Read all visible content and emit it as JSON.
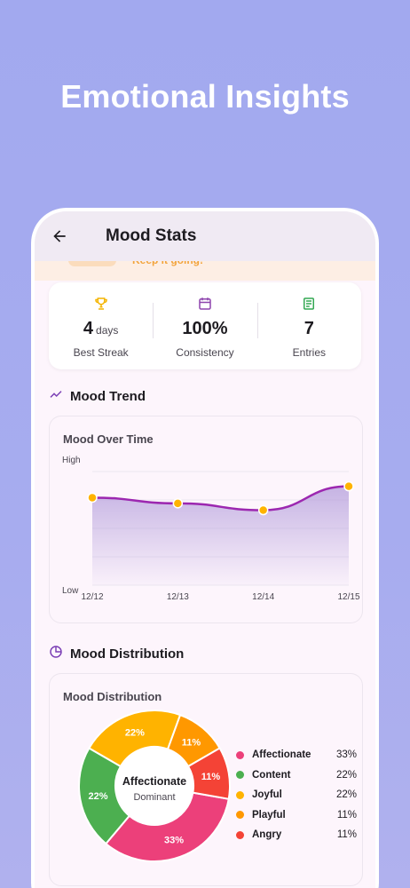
{
  "hero_title": "Emotional Insights",
  "appbar": {
    "title": "Mood Stats"
  },
  "banner": {
    "text": "Keep it going!"
  },
  "stats": [
    {
      "icon": "trophy-icon",
      "value": "4",
      "unit": "days",
      "label": "Best Streak",
      "color": "#f4b400"
    },
    {
      "icon": "calendar-icon",
      "value": "100%",
      "unit": "",
      "label": "Consistency",
      "color": "#8e44ad"
    },
    {
      "icon": "list-icon",
      "value": "7",
      "unit": "",
      "label": "Entries",
      "color": "#34a853"
    }
  ],
  "trend": {
    "section_title": "Mood Trend",
    "card_title": "Mood Over Time"
  },
  "distribution": {
    "section_title": "Mood Distribution",
    "card_title": "Mood Distribution",
    "center_label": "Affectionate",
    "center_sub": "Dominant",
    "legend": [
      {
        "name": "Affectionate",
        "pct": "33%",
        "color": "#ec407a"
      },
      {
        "name": "Content",
        "pct": "22%",
        "color": "#4caf50"
      },
      {
        "name": "Joyful",
        "pct": "22%",
        "color": "#ffb300"
      },
      {
        "name": "Playful",
        "pct": "11%",
        "color": "#ff9800"
      },
      {
        "name": "Angry",
        "pct": "11%",
        "color": "#f44336"
      }
    ]
  },
  "chart_data": [
    {
      "type": "area",
      "title": "Mood Over Time",
      "categories": [
        "12/12",
        "12/13",
        "12/14",
        "12/15"
      ],
      "values": [
        0.77,
        0.72,
        0.66,
        0.87
      ],
      "ylim": [
        0,
        1
      ],
      "y_tick_labels": [
        "Low",
        "High"
      ],
      "line_color": "#9c27b0",
      "point_color": "#ffb300",
      "fill_color": "#b39ddb"
    },
    {
      "type": "pie",
      "title": "Mood Distribution",
      "labels": [
        "Affectionate",
        "Content",
        "Joyful",
        "Playful",
        "Angry"
      ],
      "values": [
        33,
        22,
        22,
        11,
        11
      ],
      "slice_labels": [
        "33%",
        "22%",
        "22%",
        "11%",
        "11%"
      ],
      "colors": [
        "#ec407a",
        "#4caf50",
        "#ffb300",
        "#ff9800",
        "#f44336"
      ]
    }
  ]
}
